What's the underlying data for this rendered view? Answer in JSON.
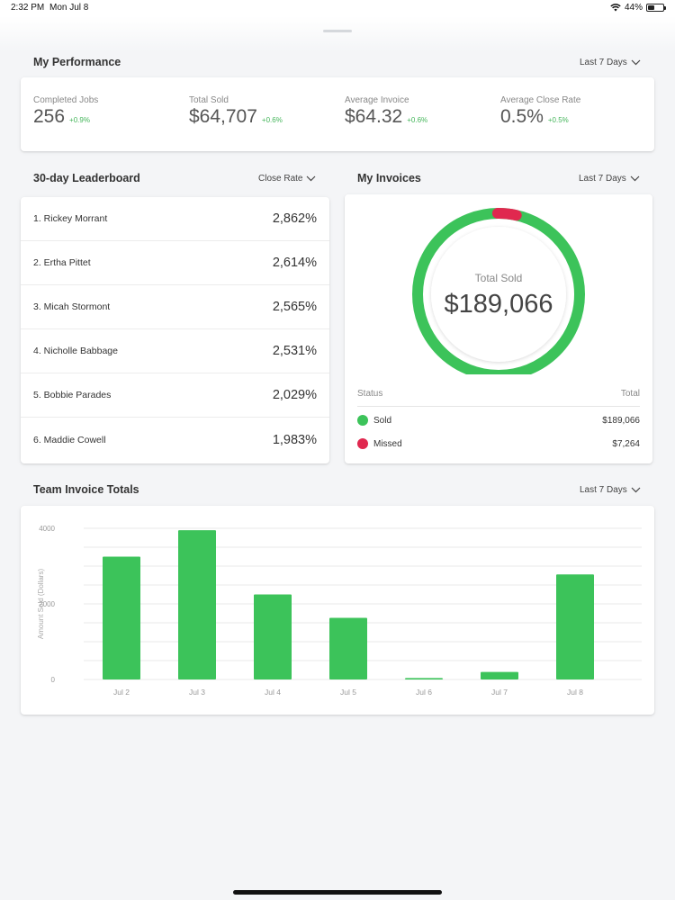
{
  "status_bar": {
    "time": "2:32 PM",
    "date": "Mon Jul 8",
    "battery": "44%",
    "battery_level": 0.44
  },
  "colors": {
    "accent_green": "#3cc35a",
    "missed_red": "#e0284f",
    "delta_green": "#44b55a"
  },
  "performance": {
    "title": "My Performance",
    "range": "Last 7 Days",
    "metrics": [
      {
        "label": "Completed Jobs",
        "value": "256",
        "delta": "+0.9%"
      },
      {
        "label": "Total Sold",
        "value": "$64,707",
        "delta": "+0.6%"
      },
      {
        "label": "Average Invoice",
        "value": "$64.32",
        "delta": "+0.6%"
      },
      {
        "label": "Average Close Rate",
        "value": "0.5%",
        "delta": "+0.5%"
      }
    ]
  },
  "leaderboard": {
    "title": "30-day Leaderboard",
    "sort": "Close Rate",
    "rows": [
      {
        "name": "1. Rickey Morrant",
        "value": "2,862%"
      },
      {
        "name": "2. Ertha Pittet",
        "value": "2,614%"
      },
      {
        "name": "3. Micah Stormont",
        "value": "2,565%"
      },
      {
        "name": "4. Nicholle Babbage",
        "value": "2,531%"
      },
      {
        "name": "5. Bobbie Parades",
        "value": "2,029%"
      },
      {
        "name": "6. Maddie Cowell",
        "value": "1,983%"
      }
    ]
  },
  "invoices": {
    "title": "My Invoices",
    "range": "Last 7 Days",
    "donut_label": "Total Sold",
    "donut_value": "$189,066",
    "col_status": "Status",
    "col_total": "Total",
    "rows": [
      {
        "status": "Sold",
        "total": "$189,066",
        "color": "#3cc35a",
        "amount": 189066
      },
      {
        "status": "Missed",
        "total": "$7,264",
        "color": "#e0284f",
        "amount": 7264
      }
    ]
  },
  "team": {
    "title": "Team Invoice Totals",
    "range": "Last 7 Days"
  },
  "chart_data": {
    "type": "bar",
    "categories": [
      "Jul 2",
      "Jul 3",
      "Jul 4",
      "Jul 5",
      "Jul 6",
      "Jul 7",
      "Jul 8"
    ],
    "values": [
      3250,
      3950,
      2250,
      1630,
      40,
      200,
      2780
    ],
    "ylabel": "Amount Sold (Dollars)",
    "yticks": [
      0,
      2000,
      4000
    ],
    "ylim": [
      0,
      4000
    ],
    "grid": true,
    "color": "#3cc35a"
  }
}
